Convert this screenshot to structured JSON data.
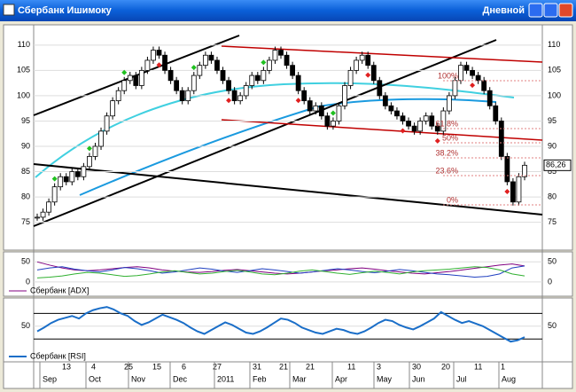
{
  "window": {
    "title": "Сбербанк Ишимоку",
    "timeframe": "Дневной"
  },
  "price_panel": {
    "type": "candlestick",
    "closes": [
      76,
      77,
      79,
      82,
      84,
      83,
      85,
      84,
      86,
      88,
      90,
      93,
      96,
      99,
      101,
      103,
      104,
      102,
      105,
      107,
      109,
      108,
      105,
      103,
      101,
      99,
      101,
      104,
      106,
      108,
      107,
      105,
      103,
      101,
      99,
      100,
      102,
      104,
      103,
      105,
      107,
      109,
      108,
      106,
      104,
      101,
      99,
      97,
      98,
      96,
      94,
      95,
      98,
      102,
      105,
      107,
      108,
      106,
      103,
      100,
      98,
      97,
      96,
      95,
      94,
      93,
      95,
      96,
      94,
      93,
      97,
      100,
      103,
      106,
      105,
      104,
      103,
      101,
      98,
      95,
      88,
      83,
      79,
      84,
      86.26
    ],
    "ylim": [
      69.5,
      114
    ],
    "yticks": [
      75,
      80,
      85,
      90,
      95,
      100,
      105,
      110
    ],
    "last_price_label": "86,26",
    "fib_labels": [
      "100%",
      "61.8%",
      "50%",
      "38.2%",
      "23.6%",
      "0%"
    ]
  },
  "adx_panel": {
    "legend": "Сбербанк [ADX]",
    "ylim": [
      -9,
      75
    ],
    "yticks": [
      0,
      50
    ],
    "series": [
      {
        "color": "#800080",
        "values": [
          50,
          42,
          35,
          30,
          28,
          30,
          33,
          36,
          38,
          35,
          30,
          27,
          25,
          24,
          26,
          29,
          31,
          28,
          25,
          22,
          20,
          22,
          25,
          28,
          30,
          33,
          35,
          32,
          28,
          25,
          22,
          20,
          23,
          26,
          30,
          34,
          38,
          42,
          45,
          40
        ]
      },
      {
        "color": "#2040c0",
        "values": [
          30,
          35,
          38,
          32,
          28,
          25,
          30,
          36,
          33,
          28,
          22,
          25,
          30,
          35,
          32,
          27,
          24,
          28,
          33,
          30,
          26,
          22,
          25,
          29,
          33,
          30,
          26,
          23,
          27,
          31,
          28,
          24,
          20,
          18,
          15,
          12,
          14,
          20,
          35,
          40
        ]
      },
      {
        "color": "#30b030",
        "values": [
          10,
          12,
          15,
          20,
          24,
          22,
          18,
          14,
          16,
          20,
          25,
          28,
          24,
          20,
          22,
          26,
          29,
          25,
          20,
          18,
          22,
          27,
          30,
          26,
          22,
          19,
          23,
          27,
          24,
          20,
          25,
          28,
          30,
          32,
          35,
          38,
          36,
          30,
          20,
          15
        ]
      }
    ]
  },
  "rsi_panel": {
    "legend": "Сбербанк [RSI]",
    "ylim": [
      11,
      94
    ],
    "yticks": [
      50
    ],
    "levels": [
      30,
      70
    ],
    "values": [
      42,
      48,
      55,
      60,
      63,
      66,
      62,
      70,
      75,
      78,
      80,
      76,
      70,
      66,
      58,
      52,
      56,
      62,
      68,
      64,
      60,
      55,
      48,
      42,
      38,
      44,
      50,
      56,
      52,
      46,
      40,
      38,
      42,
      48,
      55,
      62,
      60,
      55,
      48,
      44,
      40,
      38,
      42,
      46,
      44,
      40,
      38,
      42,
      48,
      55,
      60,
      58,
      52,
      48,
      45,
      50,
      56,
      62,
      72,
      66,
      60,
      55,
      58,
      54,
      50,
      44,
      38,
      32,
      26,
      28,
      33
    ]
  },
  "time_axis": {
    "days": [
      "13",
      "4",
      "25",
      "15",
      "6",
      "27",
      "31",
      "21",
      "21",
      "11",
      "3",
      "30",
      "20",
      "11",
      "1"
    ],
    "months": [
      "Sep",
      "Oct",
      "Nov",
      "Dec",
      "2011",
      "Feb",
      "Mar",
      "Apr",
      "May",
      "Jun",
      "Jul",
      "Aug"
    ]
  }
}
